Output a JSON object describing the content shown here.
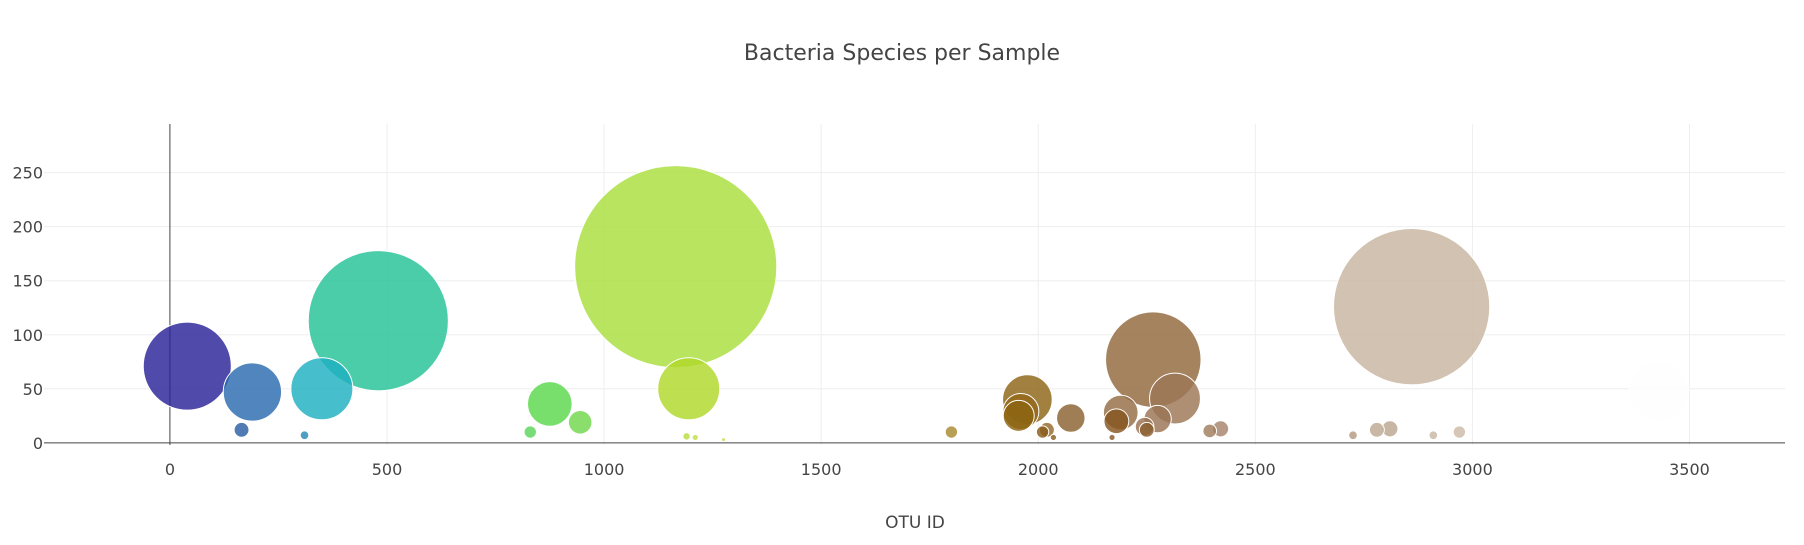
{
  "chart_data": {
    "type": "scatter",
    "title": "Bacteria Species per Sample",
    "xlabel": "OTU ID",
    "ylabel": "",
    "xlim": [
      -290,
      3720
    ],
    "ylim": [
      -2,
      295
    ],
    "x_ticks": [
      0,
      500,
      1000,
      1500,
      2000,
      2500,
      3000,
      3500
    ],
    "y_ticks": [
      0,
      50,
      100,
      150,
      200,
      250
    ],
    "grid": true,
    "legend": "none",
    "size_encodes": "y value",
    "colorscale": "Earth",
    "points": [
      {
        "x": 40,
        "y": 71,
        "color": "#2a2298"
      },
      {
        "x": 165,
        "y": 12,
        "color": "#2a5ea4"
      },
      {
        "x": 190,
        "y": 47,
        "color": "#2a6aae"
      },
      {
        "x": 310,
        "y": 7,
        "color": "#2a8ab4"
      },
      {
        "x": 350,
        "y": 50,
        "color": "#1fb0c0"
      },
      {
        "x": 480,
        "y": 113,
        "color": "#24c296"
      },
      {
        "x": 830,
        "y": 10,
        "color": "#5ad65a"
      },
      {
        "x": 875,
        "y": 36,
        "color": "#5ad84c"
      },
      {
        "x": 945,
        "y": 19,
        "color": "#70d84c"
      },
      {
        "x": 1165,
        "y": 163,
        "color": "#a8de3c"
      },
      {
        "x": 1190,
        "y": 6,
        "color": "#b8de3c"
      },
      {
        "x": 1195,
        "y": 50,
        "color": "#b0d82a"
      },
      {
        "x": 1210,
        "y": 5,
        "color": "#c2de46"
      },
      {
        "x": 1275,
        "y": 3,
        "color": "#c8d850"
      },
      {
        "x": 1800,
        "y": 10,
        "color": "#a88a30"
      },
      {
        "x": 1955,
        "y": 25,
        "color": "#8c6410"
      },
      {
        "x": 1960,
        "y": 29,
        "color": "#94681a"
      },
      {
        "x": 1975,
        "y": 40,
        "color": "#8c6416"
      },
      {
        "x": 2010,
        "y": 10,
        "color": "#8a5c1a"
      },
      {
        "x": 2020,
        "y": 12,
        "color": "#946a2a"
      },
      {
        "x": 2035,
        "y": 5,
        "color": "#8a5c20"
      },
      {
        "x": 2075,
        "y": 23,
        "color": "#8a6030"
      },
      {
        "x": 2170,
        "y": 5,
        "color": "#8a5a2a"
      },
      {
        "x": 2180,
        "y": 20,
        "color": "#86561e"
      },
      {
        "x": 2190,
        "y": 28,
        "color": "#946c44"
      },
      {
        "x": 2245,
        "y": 15,
        "color": "#9a7050"
      },
      {
        "x": 2250,
        "y": 12,
        "color": "#8a6030"
      },
      {
        "x": 2265,
        "y": 77,
        "color": "#92683c"
      },
      {
        "x": 2275,
        "y": 22,
        "color": "#9a7454"
      },
      {
        "x": 2315,
        "y": 41,
        "color": "#9c7656"
      },
      {
        "x": 2395,
        "y": 11,
        "color": "#a07e5e"
      },
      {
        "x": 2420,
        "y": 13,
        "color": "#a6846a"
      },
      {
        "x": 2725,
        "y": 7,
        "color": "#b49a80"
      },
      {
        "x": 2780,
        "y": 12,
        "color": "#bea892"
      },
      {
        "x": 2810,
        "y": 13,
        "color": "#bca690"
      },
      {
        "x": 2860,
        "y": 126,
        "color": "#c8b4a0"
      },
      {
        "x": 2910,
        "y": 7,
        "color": "#c8b6a4"
      },
      {
        "x": 2970,
        "y": 10,
        "color": "#ccbaa8"
      },
      {
        "x": 3430,
        "y": 48,
        "color": "#fefefe"
      }
    ]
  }
}
